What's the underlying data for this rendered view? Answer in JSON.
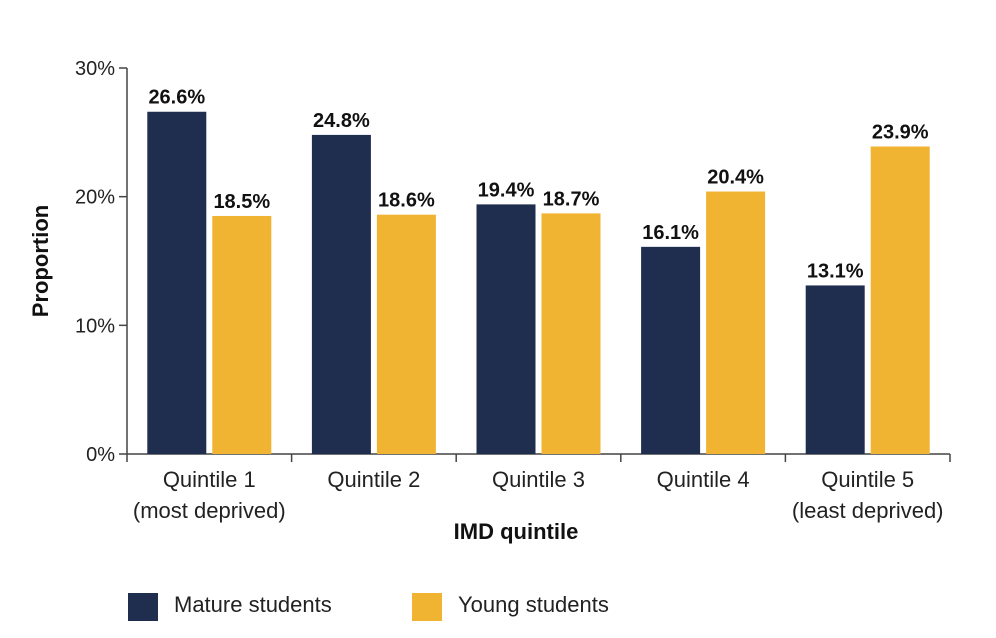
{
  "chart_data": {
    "type": "bar",
    "xlabel": "IMD quintile",
    "ylabel": "Proportion",
    "ylim": [
      0,
      30
    ],
    "yticks": [
      "0%",
      "10%",
      "20%",
      "30%"
    ],
    "categories": [
      [
        "Quintile 1",
        "(most deprived)"
      ],
      [
        "Quintile 2"
      ],
      [
        "Quintile 3"
      ],
      [
        "Quintile 4"
      ],
      [
        "Quintile 5",
        "(least deprived)"
      ]
    ],
    "series": [
      {
        "name": "Mature students",
        "color": "#1f2d4e",
        "values": [
          26.6,
          24.8,
          19.4,
          16.1,
          13.1
        ],
        "labels": [
          "26.6%",
          "24.8%",
          "19.4%",
          "16.1%",
          "13.1%"
        ]
      },
      {
        "name": "Young students",
        "color": "#f0b432",
        "values": [
          18.5,
          18.6,
          18.7,
          20.4,
          23.9
        ],
        "labels": [
          "18.5%",
          "18.6%",
          "18.7%",
          "20.4%",
          "23.9%"
        ]
      }
    ],
    "grid": false,
    "legend_position": "bottom-left"
  }
}
